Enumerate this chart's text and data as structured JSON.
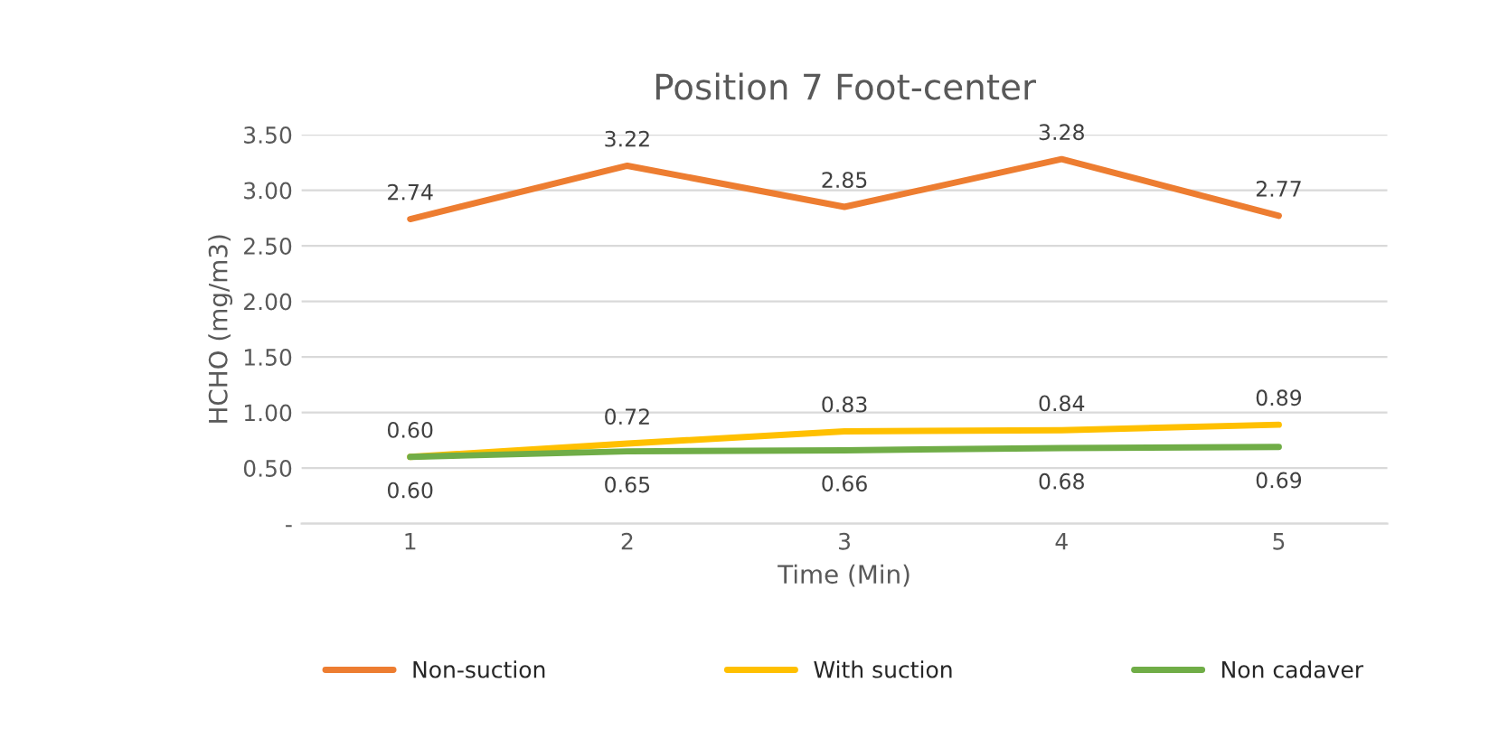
{
  "chart_data": {
    "type": "line",
    "title": "Position 7 Foot-center",
    "xlabel": "Time (Min)",
    "ylabel": "HCHO (mg/m3)",
    "categories": [
      "1",
      "2",
      "3",
      "4",
      "5"
    ],
    "series": [
      {
        "name": "Non-suction",
        "color": "#ed7d31",
        "values": [
          2.74,
          3.22,
          2.85,
          3.28,
          2.77
        ],
        "value_labels": [
          "2.74",
          "3.22",
          "2.85",
          "3.28",
          "2.77"
        ]
      },
      {
        "name": "With suction",
        "color": "#ffc000",
        "values": [
          0.6,
          0.72,
          0.83,
          0.84,
          0.89
        ],
        "value_labels": [
          "0.60",
          "0.72",
          "0.83",
          "0.84",
          "0.89"
        ]
      },
      {
        "name": "Non cadaver",
        "color": "#70ad47",
        "values": [
          0.6,
          0.65,
          0.66,
          0.68,
          0.69
        ],
        "value_labels": [
          "0.60",
          "0.65",
          "0.66",
          "0.68",
          "0.69"
        ]
      }
    ],
    "ylim": [
      0,
      3.5
    ],
    "yticks": [
      {
        "value": 0,
        "label": "-"
      },
      {
        "value": 0.5,
        "label": "0.50"
      },
      {
        "value": 1.0,
        "label": "1.00"
      },
      {
        "value": 1.5,
        "label": "1.50"
      },
      {
        "value": 2.0,
        "label": "2.00"
      },
      {
        "value": 2.5,
        "label": "2.50"
      },
      {
        "value": 3.0,
        "label": "3.00"
      },
      {
        "value": 3.5,
        "label": "3.50"
      }
    ],
    "grid": "y",
    "legend": "bottom",
    "marker": "none",
    "line_style": "solid"
  }
}
